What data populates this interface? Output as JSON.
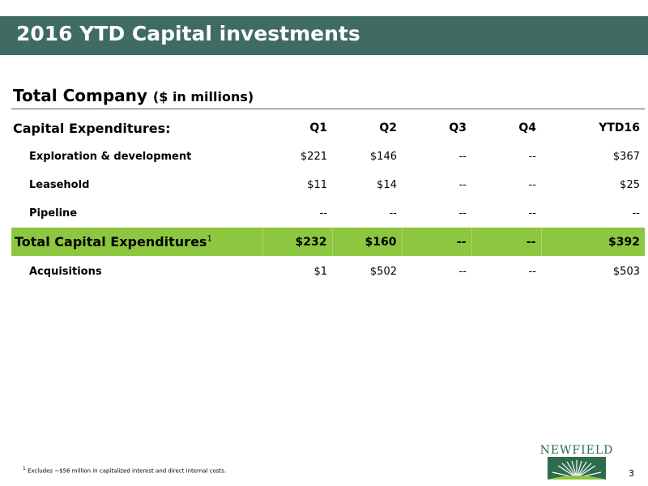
{
  "header": {
    "title": "2016 YTD Capital investments"
  },
  "section": {
    "title": "Total Company",
    "unit": "($ in millions)"
  },
  "table": {
    "header_label": "Capital Expenditures:",
    "columns": [
      "Q1",
      "Q2",
      "Q3",
      "Q4",
      "YTD16"
    ],
    "rows": [
      {
        "label": "Exploration & development",
        "values": [
          "$221",
          "$146",
          "--",
          "--",
          "$367"
        ]
      },
      {
        "label": "Leasehold",
        "values": [
          "$11",
          "$14",
          "--",
          "--",
          "$25"
        ]
      },
      {
        "label": "Pipeline",
        "values": [
          "--",
          "--",
          "--",
          "--",
          "--"
        ]
      }
    ],
    "total": {
      "label": "Total Capital Expenditures",
      "footnote_mark": "1",
      "values": [
        "$232",
        "$160",
        "--",
        "--",
        "$392"
      ]
    },
    "acquisitions": {
      "label": "Acquisitions",
      "values": [
        "$1",
        "$502",
        "--",
        "--",
        "$503"
      ]
    }
  },
  "footnote": {
    "mark": "1",
    "text": "Excludes ~$56 million in capitalized interest and direct internal costs."
  },
  "page_number": "3",
  "logo": {
    "text": "NEWFIELD"
  },
  "colors": {
    "title_bar": "#3f6b63",
    "total_row": "#8dc63f",
    "logo": "#2f6b4d"
  }
}
